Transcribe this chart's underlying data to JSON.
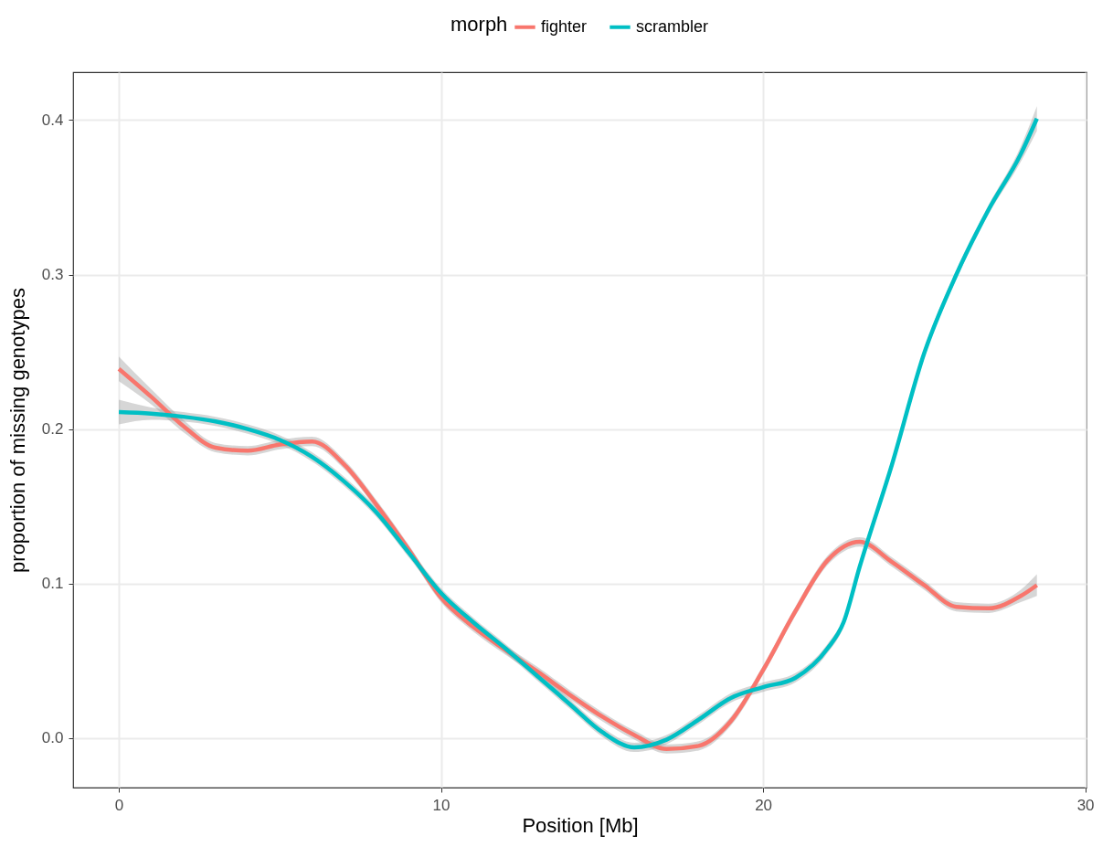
{
  "chart_data": {
    "type": "line",
    "xlabel": "Position [Mb]",
    "ylabel": "proportion of missing genotypes",
    "legend_title": "morph",
    "legend": "top",
    "grid": true,
    "line_style": "solid",
    "marker": "none",
    "xlim": [
      -1.42,
      30.04
    ],
    "xticks": [
      0,
      10,
      20,
      30
    ],
    "ylim": [
      -0.032,
      0.431
    ],
    "yticks": [
      {
        "value": 0,
        "label": "0.0"
      },
      0.1,
      0.2,
      0.3,
      0.4
    ],
    "series": [
      {
        "name": "fighter",
        "color": "#f8766d",
        "x": [
          0,
          1,
          2,
          3,
          4,
          5,
          6,
          7,
          8,
          9,
          10,
          11,
          12,
          13,
          14,
          15,
          16,
          17,
          18,
          19,
          20,
          21,
          22,
          23,
          24,
          25,
          26,
          27,
          28,
          28.5
        ],
        "values": [
          0.239,
          0.221,
          0.202,
          0.188,
          0.186,
          0.19,
          0.192,
          0.177,
          0.151,
          0.122,
          0.091,
          0.072,
          0.057,
          0.043,
          0.028,
          0.014,
          0.002,
          -0.007,
          -0.005,
          0.011,
          0.044,
          0.082,
          0.115,
          0.127,
          0.114,
          0.099,
          0.085,
          0.084,
          0.092,
          0.099
        ],
        "lower": [
          0.231,
          0.216,
          0.198,
          0.185,
          0.183,
          0.187,
          0.189,
          0.174,
          0.148,
          0.119,
          0.088,
          0.069,
          0.054,
          0.04,
          0.025,
          0.011,
          -0.001,
          -0.01,
          -0.008,
          0.008,
          0.041,
          0.079,
          0.112,
          0.124,
          0.111,
          0.096,
          0.082,
          0.081,
          0.088,
          0.092
        ],
        "upper": [
          0.247,
          0.226,
          0.206,
          0.191,
          0.189,
          0.193,
          0.195,
          0.18,
          0.154,
          0.125,
          0.094,
          0.075,
          0.06,
          0.046,
          0.031,
          0.017,
          0.005,
          -0.004,
          -0.002,
          0.014,
          0.047,
          0.085,
          0.118,
          0.13,
          0.117,
          0.102,
          0.088,
          0.087,
          0.096,
          0.106
        ]
      },
      {
        "name": "scrambler",
        "color": "#00bfc4",
        "x": [
          0,
          1,
          2,
          3,
          4,
          5,
          6,
          7,
          8,
          9,
          10,
          11,
          12,
          13,
          14,
          15,
          16,
          17,
          18,
          19,
          20,
          21,
          22,
          22.5,
          23,
          24,
          25,
          26,
          27,
          28,
          28.5
        ],
        "values": [
          0.211,
          0.21,
          0.208,
          0.205,
          0.2,
          0.193,
          0.182,
          0.166,
          0.146,
          0.12,
          0.094,
          0.075,
          0.058,
          0.04,
          0.022,
          0.004,
          -0.006,
          -0.001,
          0.012,
          0.026,
          0.033,
          0.039,
          0.058,
          0.075,
          0.111,
          0.177,
          0.249,
          0.3,
          0.342,
          0.378,
          0.401
        ],
        "lower": [
          0.203,
          0.206,
          0.205,
          0.202,
          0.197,
          0.19,
          0.179,
          0.163,
          0.143,
          0.117,
          0.091,
          0.072,
          0.055,
          0.037,
          0.019,
          0.001,
          -0.009,
          -0.004,
          0.009,
          0.023,
          0.03,
          0.036,
          0.055,
          0.072,
          0.108,
          0.174,
          0.246,
          0.297,
          0.339,
          0.373,
          0.393
        ],
        "upper": [
          0.219,
          0.214,
          0.211,
          0.208,
          0.203,
          0.196,
          0.185,
          0.169,
          0.149,
          0.123,
          0.097,
          0.078,
          0.061,
          0.043,
          0.025,
          0.007,
          -0.003,
          0.002,
          0.015,
          0.029,
          0.036,
          0.042,
          0.061,
          0.078,
          0.114,
          0.18,
          0.252,
          0.303,
          0.345,
          0.383,
          0.409
        ]
      }
    ]
  }
}
